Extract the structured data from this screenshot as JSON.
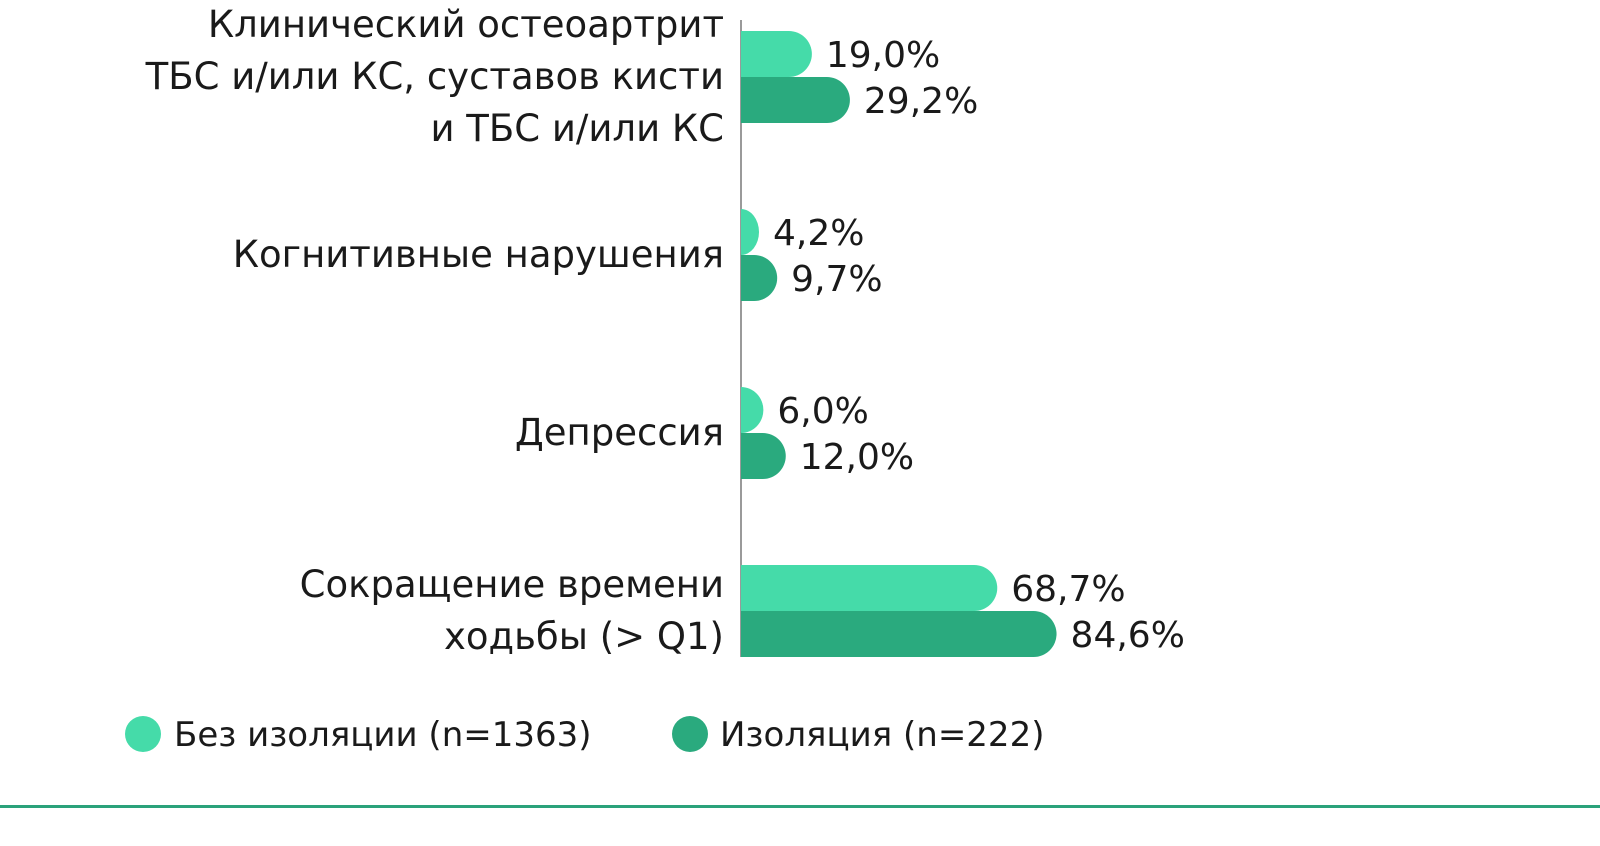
{
  "chart_data": {
    "type": "bar",
    "orientation": "horizontal",
    "categories": [
      [
        "Клинический остеоартрит",
        "ТБС и/или КС, суставов кисти",
        "и ТБС и/или КС"
      ],
      [
        "Когнитивные нарушения"
      ],
      [
        "Депрессия"
      ],
      [
        "Сокращение времени",
        "ходьбы (> Q1)"
      ]
    ],
    "series": [
      {
        "name": "Без изоляции (n=1363)",
        "color": "#45dba9",
        "values": [
          19.0,
          4.2,
          6.0,
          68.7
        ],
        "labels": [
          "19,0%",
          "4,2%",
          "6,0%",
          "68,7%"
        ]
      },
      {
        "name": "Изоляция (n=222)",
        "color": "#2aaa7e",
        "values": [
          29.2,
          9.7,
          12.0,
          84.6
        ],
        "labels": [
          "29,2%",
          "9,7%",
          "12,0%",
          "84,6%"
        ]
      }
    ],
    "xlim": [
      0,
      100
    ],
    "legend_position": "bottom",
    "grid": false
  }
}
